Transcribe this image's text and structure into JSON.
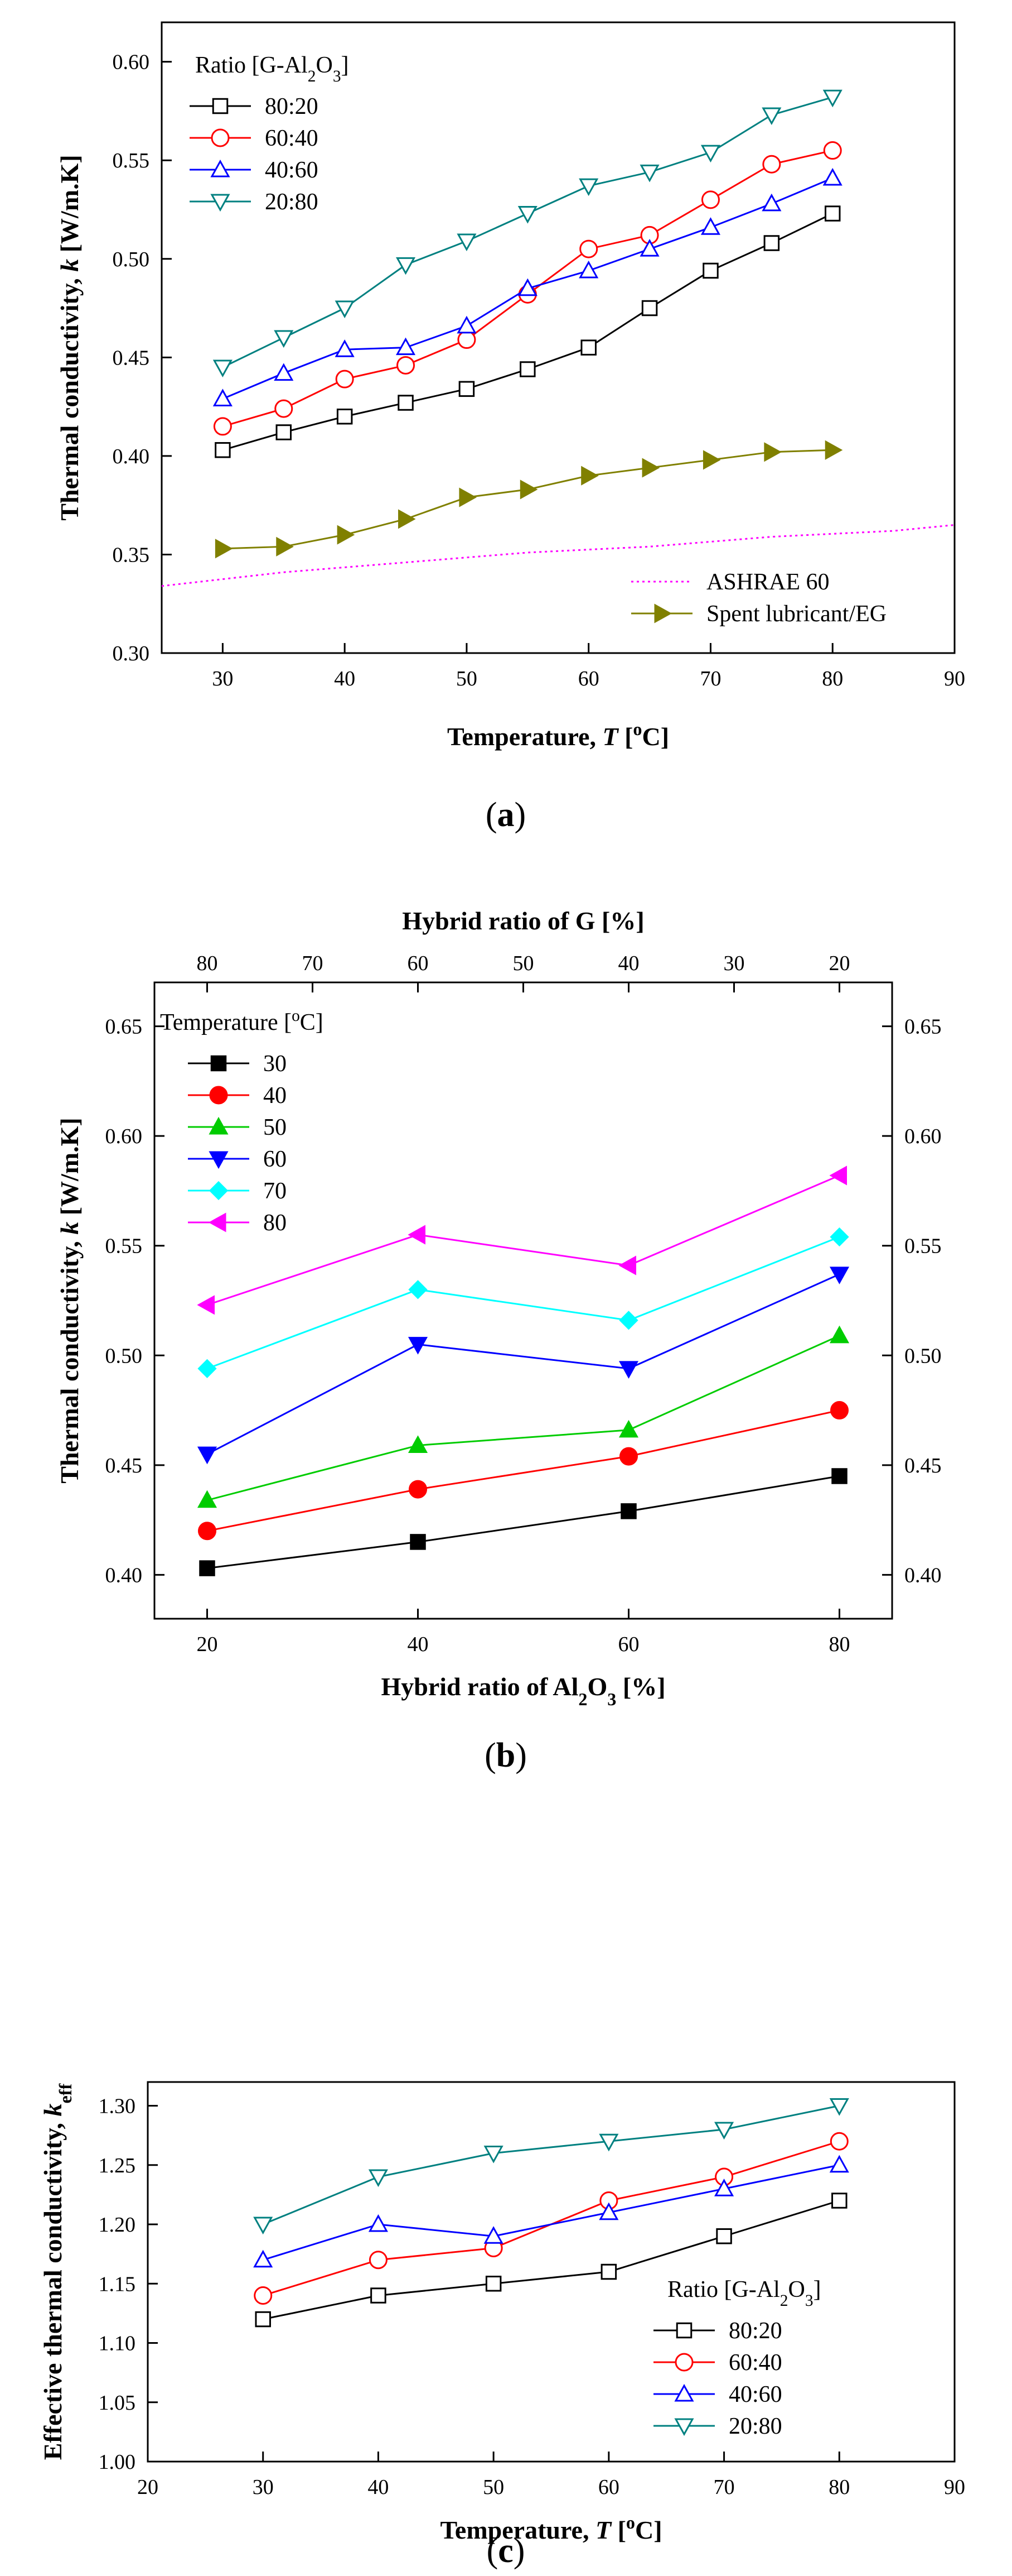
{
  "chart_data": [
    {
      "type": "line",
      "panel_label": "(a)",
      "panel_letter": "a",
      "xlabel": "Temperature, T [°C]",
      "ylabel": "Thermal conductivity, k [W/m.K]",
      "xlim": [
        25,
        90
      ],
      "ylim": [
        0.3,
        0.62
      ],
      "xticks": [
        30,
        40,
        50,
        60,
        70,
        80,
        90
      ],
      "yticks": [
        0.3,
        0.35,
        0.4,
        0.45,
        0.5,
        0.55,
        0.6
      ],
      "legend_title": "Ratio [G-Al2O3]",
      "legend_position": "top-left",
      "x": [
        30,
        35,
        40,
        45,
        50,
        55,
        60,
        65,
        70,
        75,
        80
      ],
      "series": [
        {
          "name": "80:20",
          "color": "#000000",
          "marker": "square-open",
          "values": [
            0.403,
            0.412,
            0.42,
            0.427,
            0.434,
            0.444,
            0.455,
            0.475,
            0.494,
            0.508,
            0.523
          ]
        },
        {
          "name": "60:40",
          "color": "#ff0000",
          "marker": "circle-open",
          "values": [
            0.415,
            0.424,
            0.439,
            0.446,
            0.459,
            0.482,
            0.505,
            0.512,
            0.53,
            0.548,
            0.555
          ]
        },
        {
          "name": "40:60",
          "color": "#0000ff",
          "marker": "triangle-up-open",
          "values": [
            0.429,
            0.442,
            0.454,
            0.455,
            0.466,
            0.485,
            0.494,
            0.505,
            0.516,
            0.528,
            0.541
          ]
        },
        {
          "name": "20:80",
          "color": "#008080",
          "marker": "triangle-down-open",
          "values": [
            0.445,
            0.46,
            0.475,
            0.497,
            0.509,
            0.523,
            0.537,
            0.544,
            0.554,
            0.573,
            0.582
          ]
        }
      ],
      "extra_series": [
        {
          "name": "ASHRAE 60",
          "color": "#ff00ff",
          "style": "dotted",
          "x": [
            25,
            35,
            45,
            55,
            65,
            75,
            85,
            90
          ],
          "values": [
            0.334,
            0.341,
            0.346,
            0.351,
            0.354,
            0.359,
            0.362,
            0.365
          ]
        },
        {
          "name": "Spent lubricant/EG",
          "color": "#808000",
          "marker": "triangle-right-filled",
          "x": [
            30,
            35,
            40,
            45,
            50,
            55,
            60,
            65,
            70,
            75,
            80
          ],
          "values": [
            0.353,
            0.354,
            0.36,
            0.368,
            0.379,
            0.383,
            0.39,
            0.394,
            0.398,
            0.402,
            0.403
          ]
        }
      ],
      "legend2_position": "bottom-right"
    },
    {
      "type": "line",
      "panel_label": "(b)",
      "panel_letter": "b",
      "xlabel": "Hybrid ratio of Al2O3 [%]",
      "x2label": "Hybrid ratio of G [%]",
      "ylabel": "Thermal conductivity, k [W/m.K]",
      "xlim": [
        15,
        85
      ],
      "ylim": [
        0.38,
        0.67
      ],
      "xticks": [
        20,
        40,
        60,
        80
      ],
      "x2ticks": [
        80,
        70,
        60,
        50,
        40,
        30,
        20
      ],
      "yticks": [
        0.4,
        0.45,
        0.5,
        0.55,
        0.6,
        0.65
      ],
      "legend_title": "Temperature [°C]",
      "legend_position": "top-left",
      "x": [
        20,
        40,
        60,
        80
      ],
      "series": [
        {
          "name": "30",
          "color": "#000000",
          "marker": "square-filled",
          "values": [
            0.403,
            0.415,
            0.429,
            0.445
          ]
        },
        {
          "name": "40",
          "color": "#ff0000",
          "marker": "circle-filled",
          "values": [
            0.42,
            0.439,
            0.454,
            0.475
          ]
        },
        {
          "name": "50",
          "color": "#00cc00",
          "marker": "triangle-up-filled",
          "values": [
            0.434,
            0.459,
            0.466,
            0.509
          ]
        },
        {
          "name": "60",
          "color": "#0000ff",
          "marker": "triangle-down-filled",
          "values": [
            0.455,
            0.505,
            0.494,
            0.537
          ]
        },
        {
          "name": "70",
          "color": "#00ffff",
          "marker": "diamond-filled",
          "values": [
            0.494,
            0.53,
            0.516,
            0.554
          ]
        },
        {
          "name": "80",
          "color": "#ff00ff",
          "marker": "triangle-left-filled",
          "values": [
            0.523,
            0.555,
            0.541,
            0.582
          ]
        }
      ]
    },
    {
      "type": "line",
      "panel_label": "(c)",
      "panel_letter": "c",
      "xlabel": "Temperature, T [°C]",
      "ylabel": "Effective thermal conductivity, keff",
      "xlim": [
        20,
        90
      ],
      "ylim": [
        1.0,
        1.32
      ],
      "xticks": [
        20,
        30,
        40,
        50,
        60,
        70,
        80,
        90
      ],
      "yticks": [
        1.0,
        1.05,
        1.1,
        1.15,
        1.2,
        1.25,
        1.3
      ],
      "legend_title": "Ratio [G-Al2O3]",
      "legend_position": "bottom-right",
      "x": [
        30,
        40,
        50,
        60,
        70,
        80
      ],
      "series": [
        {
          "name": "80:20",
          "color": "#000000",
          "marker": "square-open",
          "values": [
            1.12,
            1.14,
            1.15,
            1.16,
            1.19,
            1.22
          ]
        },
        {
          "name": "60:40",
          "color": "#ff0000",
          "marker": "circle-open",
          "values": [
            1.14,
            1.17,
            1.18,
            1.22,
            1.24,
            1.27
          ]
        },
        {
          "name": "40:60",
          "color": "#0000ff",
          "marker": "triangle-up-open",
          "values": [
            1.17,
            1.2,
            1.19,
            1.21,
            1.23,
            1.25
          ]
        },
        {
          "name": "20:80",
          "color": "#008080",
          "marker": "triangle-down-open",
          "values": [
            1.2,
            1.24,
            1.26,
            1.27,
            1.28,
            1.3
          ]
        }
      ]
    }
  ]
}
